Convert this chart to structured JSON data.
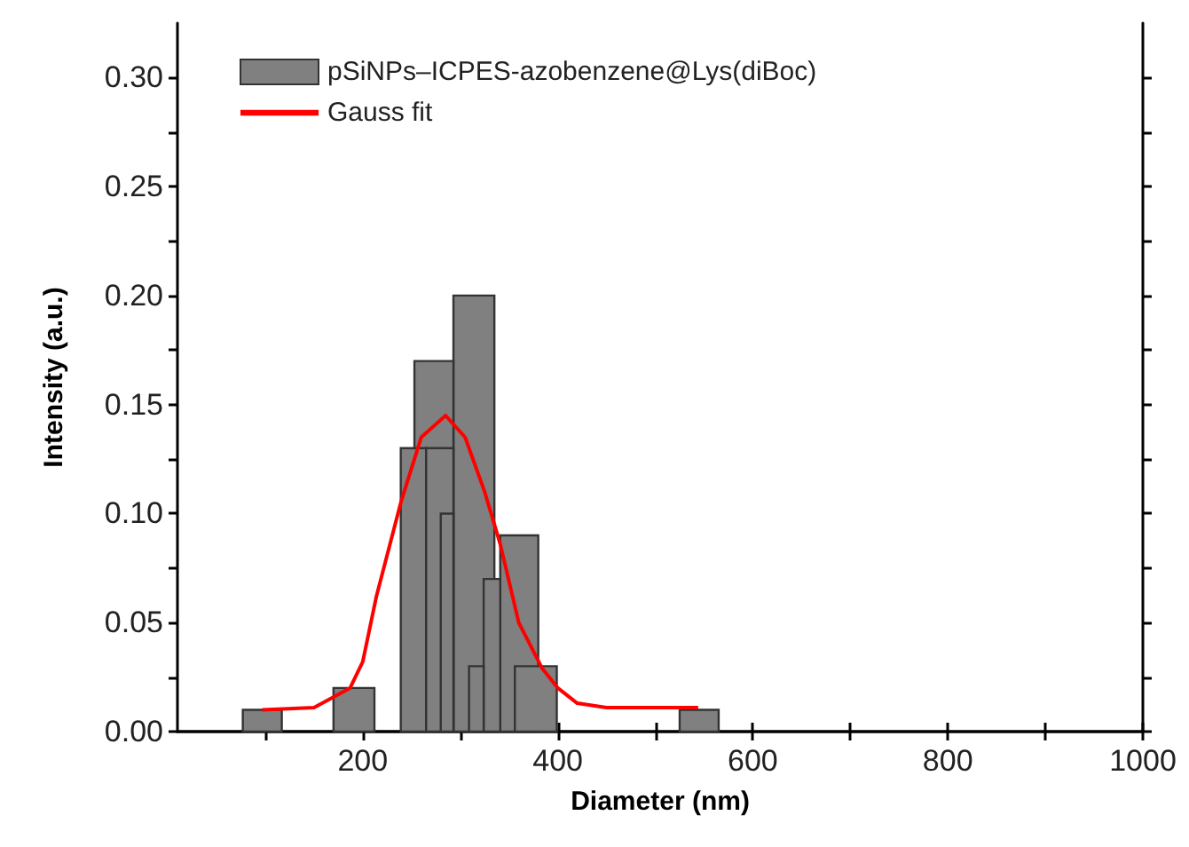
{
  "chart_data": {
    "type": "histogram",
    "xlabel": "Diameter (nm)",
    "ylabel": "Intensity (a.u.)",
    "xlim": [
      10,
      1000
    ],
    "xticks": [
      {
        "value": 100,
        "label": null
      },
      200,
      {
        "value": 300,
        "label": null
      },
      400,
      {
        "value": 500,
        "label": null
      },
      600,
      {
        "value": 700,
        "label": null
      },
      800,
      {
        "value": 900,
        "label": null
      },
      1000
    ],
    "ylim": [
      0,
      0.325
    ],
    "yticks": [
      {
        "value": 0,
        "label": "0.00"
      },
      {
        "value": 0.025,
        "label": null
      },
      {
        "value": 0.05,
        "label": "0.05"
      },
      {
        "value": 0.075,
        "label": null
      },
      {
        "value": 0.1,
        "label": "0.10"
      },
      {
        "value": 0.125,
        "label": null
      },
      {
        "value": 0.15,
        "label": "0.15"
      },
      {
        "value": 0.175,
        "label": null
      },
      {
        "value": 0.2,
        "label": "0.20"
      },
      {
        "value": 0.225,
        "label": null
      },
      {
        "value": 0.25,
        "label": "0.25"
      },
      {
        "value": 0.275,
        "label": null
      },
      {
        "value": 0.3,
        "label": "0.30"
      }
    ],
    "grid": false,
    "legend": "top left",
    "series": [
      {
        "name": "pSiNPs–ICPES-azobenzene@Lys(diBoc)",
        "color": "#808080",
        "bins": [
          77,
          117
        ],
        "values": [
          0.01
        ]
      },
      {
        "color": "#808080",
        "bins": [
          170,
          212
        ],
        "values": [
          0.02
        ]
      },
      {
        "color": "#808080",
        "bins": [
          239,
          265
        ],
        "values": [
          0.13
        ]
      },
      {
        "color": "#808080",
        "bins": [
          253,
          293
        ],
        "values": [
          0.17
        ]
      },
      {
        "color": "#808080",
        "bins": [
          265,
          293
        ],
        "values": [
          0.13
        ]
      },
      {
        "color": "#808080",
        "bins": [
          280,
          293
        ],
        "values": [
          0.1
        ]
      },
      {
        "color": "#808080",
        "bins": [
          293,
          335
        ],
        "values": [
          0.2
        ]
      },
      {
        "color": "#808080",
        "bins": [
          309,
          324
        ],
        "values": [
          0.03
        ]
      },
      {
        "color": "#808080",
        "bins": [
          324,
          341
        ],
        "values": [
          0.07
        ]
      },
      {
        "color": "#808080",
        "bins": [
          341,
          380
        ],
        "values": [
          0.09
        ]
      },
      {
        "color": "#808080",
        "bins": [
          356,
          399
        ],
        "values": [
          0.03
        ]
      },
      {
        "color": "#808080",
        "bins": [
          525,
          565
        ],
        "values": [
          0.01
        ]
      },
      {
        "name": "Gauss fit",
        "type": "line",
        "color": "#ff0000",
        "x": [
          97,
          150,
          187,
          200,
          214,
          239,
          260,
          285,
          305,
          325,
          341,
          360,
          384,
          400,
          420,
          450,
          544
        ],
        "values": [
          0.01,
          0.011,
          0.02,
          0.032,
          0.062,
          0.105,
          0.135,
          0.145,
          0.135,
          0.11,
          0.086,
          0.05,
          0.029,
          0.02,
          0.013,
          0.011,
          0.011
        ]
      }
    ]
  }
}
